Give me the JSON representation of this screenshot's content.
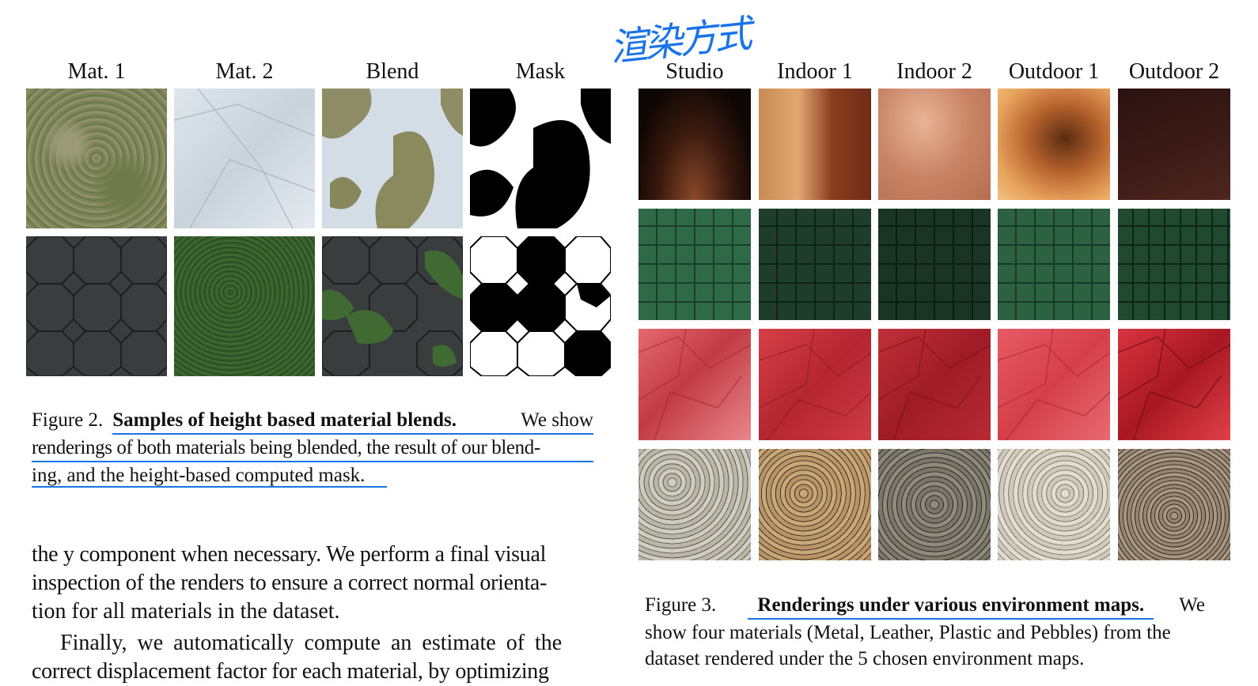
{
  "annotation": "渲染方式",
  "figure2": {
    "headers": [
      "Mat. 1",
      "Mat. 2",
      "Blend",
      "Mask"
    ],
    "caption_label": "Figure 2.",
    "caption_title": "Samples of height based material blends.",
    "caption_l1_tail": "We show",
    "caption_l2": "renderings of both materials being blended, the result of our blend-",
    "caption_l3": "ing, and the height-based computed mask."
  },
  "body": {
    "p1_l1": "the y component when necessary. We perform a final visual",
    "p1_l2": "inspection of the renders to ensure a correct normal orienta-",
    "p1_l3": "tion for all materials in the dataset.",
    "p2_l1": "Finally, we automatically compute an estimate of the",
    "p2_l2": "correct displacement factor for each material, by optimizing"
  },
  "figure3": {
    "headers": [
      "Studio",
      "Indoor 1",
      "Indoor 2",
      "Outdoor 1",
      "Outdoor 2"
    ],
    "caption_label": "Figure 3.",
    "caption_title": "Renderings under various environment maps.",
    "caption_l1_tail": "We",
    "caption_l2": "show four materials (Metal, Leather, Plastic and Pebbles) from the",
    "caption_l3": "dataset rendered under the 5 chosen environment maps."
  },
  "colors": {
    "annotation": "#1a73e8"
  }
}
